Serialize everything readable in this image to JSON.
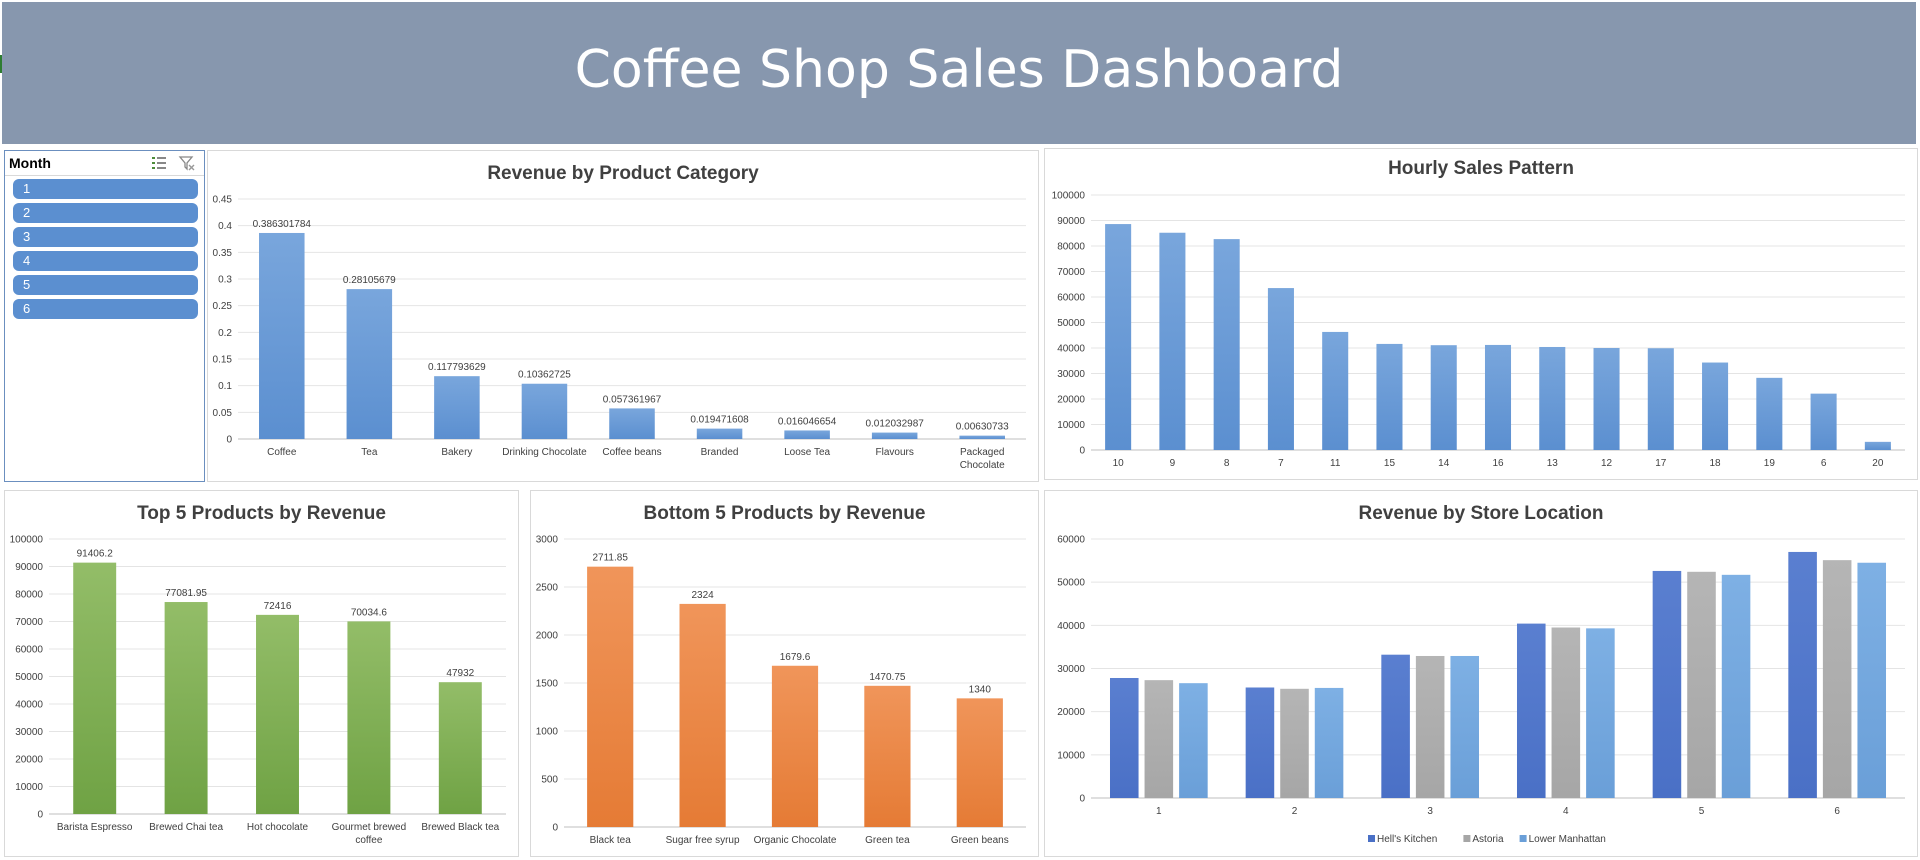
{
  "banner": {
    "title": "Coffee Shop Sales Dashboard"
  },
  "slicer": {
    "title": "Month",
    "items": [
      "1",
      "2",
      "3",
      "4",
      "5",
      "6"
    ],
    "icons": [
      "multi-select-icon",
      "clear-filter-icon"
    ]
  },
  "colors": {
    "blue": "#5b8fd0",
    "green": "#6fa244",
    "orange": "#e57b35",
    "gray": "#a6a6a6",
    "dark_blue": "#4a70c6",
    "light_blue": "#6a9fd8",
    "banner": "#8797ae"
  },
  "chart_data": [
    {
      "id": "category",
      "type": "bar",
      "title": "Revenue by Product Category",
      "categories": [
        "Coffee",
        "Tea",
        "Bakery",
        "Drinking Chocolate",
        "Coffee beans",
        "Branded",
        "Loose Tea",
        "Flavours",
        "Packaged Chocolate"
      ],
      "values": [
        0.386301784,
        0.28105679,
        0.117793629,
        0.10362725,
        0.057361967,
        0.019471608,
        0.016046654,
        0.012032987,
        0.00630733
      ],
      "labels": [
        "0.386301784",
        "0.28105679",
        "0.117793629",
        "0.10362725",
        "0.057361967",
        "0.019471608",
        "0.016046654",
        "0.012032987",
        "0.00630733"
      ],
      "ylim": [
        0,
        0.45
      ],
      "yticks": [
        "0",
        "0.05",
        "0.1",
        "0.15",
        "0.2",
        "0.25",
        "0.3",
        "0.35",
        "0.4",
        "0.45"
      ],
      "grid": true
    },
    {
      "id": "hourly",
      "type": "bar",
      "title": "Hourly Sales Pattern",
      "categories": [
        "10",
        "9",
        "8",
        "7",
        "11",
        "15",
        "14",
        "16",
        "13",
        "12",
        "17",
        "18",
        "19",
        "6",
        "20"
      ],
      "values": [
        88600,
        85200,
        82700,
        63500,
        46300,
        41600,
        41100,
        41200,
        40400,
        40000,
        39900,
        34300,
        28300,
        22100,
        3200
      ],
      "ylim": [
        0,
        100000
      ],
      "yticks": [
        "0",
        "10000",
        "20000",
        "30000",
        "40000",
        "50000",
        "60000",
        "70000",
        "80000",
        "90000",
        "100000"
      ],
      "grid": true
    },
    {
      "id": "top5",
      "type": "bar",
      "title": "Top 5 Products by Revenue",
      "categories": [
        "Barista Espresso",
        "Brewed Chai tea",
        "Hot chocolate",
        "Gourmet brewed coffee",
        "Brewed Black tea"
      ],
      "values": [
        91406.2,
        77081.95,
        72416,
        70034.6,
        47932
      ],
      "labels": [
        "91406.2",
        "77081.95",
        "72416",
        "70034.6",
        "47932"
      ],
      "ylim": [
        0,
        100000
      ],
      "yticks": [
        "0",
        "10000",
        "20000",
        "30000",
        "40000",
        "50000",
        "60000",
        "70000",
        "80000",
        "90000",
        "100000"
      ],
      "grid": true
    },
    {
      "id": "bottom5",
      "type": "bar",
      "title": "Bottom 5 Products by Revenue",
      "categories": [
        "Black tea",
        "Sugar free syrup",
        "Organic Chocolate",
        "Green tea",
        "Green beans"
      ],
      "values": [
        2711.85,
        2324,
        1679.6,
        1470.75,
        1340
      ],
      "labels": [
        "2711.85",
        "2324",
        "1679.6",
        "1470.75",
        "1340"
      ],
      "ylim": [
        0,
        3000
      ],
      "yticks": [
        "0",
        "500",
        "1000",
        "1500",
        "2000",
        "2500",
        "3000"
      ],
      "grid": true
    },
    {
      "id": "store",
      "type": "bar",
      "title": "Revenue by Store Location",
      "categories": [
        "1",
        "2",
        "3",
        "4",
        "5",
        "6"
      ],
      "series": [
        {
          "name": "Hell's Kitchen",
          "values": [
            27800,
            25600,
            33200,
            40400,
            52600,
            57000
          ]
        },
        {
          "name": "Astoria",
          "values": [
            27300,
            25300,
            32900,
            39500,
            52400,
            55100
          ]
        },
        {
          "name": "Lower Manhattan",
          "values": [
            26600,
            25500,
            32900,
            39300,
            51700,
            54500
          ]
        }
      ],
      "ylim": [
        0,
        60000
      ],
      "yticks": [
        "0",
        "10000",
        "20000",
        "30000",
        "40000",
        "50000",
        "60000"
      ],
      "legend": "bottom",
      "grid": true
    }
  ]
}
